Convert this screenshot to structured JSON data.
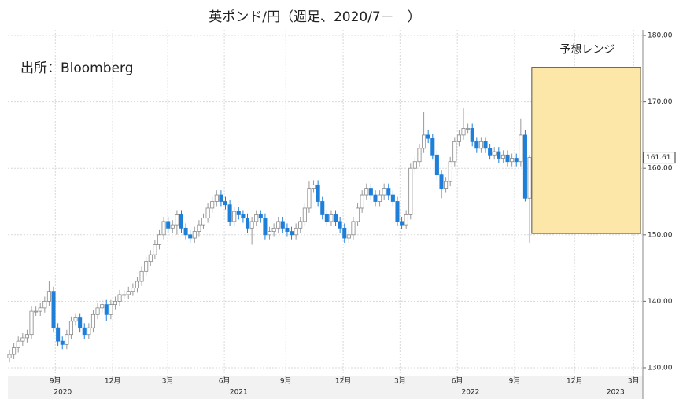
{
  "chart_data": {
    "type": "candlestick",
    "title": "英ポンド/円（週足、2020/7－　）",
    "source": "出所：Bloomberg",
    "up_color": "#ffffff",
    "down_color": "#1e7fd8",
    "open": [
      131.5,
      132,
      133,
      134,
      134.5,
      135,
      138.5,
      138.5,
      139,
      140,
      141.5,
      136,
      134,
      133.5,
      135,
      137,
      137.5,
      136,
      135,
      136,
      138,
      139,
      139.5,
      138,
      139.5,
      140,
      141,
      141,
      141.5,
      142,
      143,
      144.5,
      146,
      147,
      148.5,
      150,
      152,
      151,
      151.5,
      153,
      151,
      150,
      149.5,
      150.5,
      151.5,
      152.5,
      154,
      155,
      156,
      155,
      154.5,
      152,
      153.5,
      153,
      152.5,
      151,
      152,
      153,
      152.5,
      150,
      150.5,
      151,
      152,
      151,
      150.5,
      150,
      151,
      152,
      154,
      157,
      157.5,
      155,
      153,
      152,
      153,
      152,
      151,
      149.5,
      150,
      152,
      154,
      156,
      157,
      156,
      155,
      156,
      157,
      156,
      155,
      152,
      151.5,
      153,
      160,
      161,
      163,
      165,
      164.5,
      162,
      159,
      157,
      158,
      161,
      164,
      165,
      166,
      166,
      164,
      163,
      164,
      163,
      162,
      162.5,
      161.5,
      162,
      161,
      161.5,
      161,
      165,
      155.5
    ],
    "high": [
      132.7,
      133.7,
      134.7,
      135.2,
      135.7,
      139.2,
      139.2,
      139.7,
      140.7,
      143,
      142.2,
      136.7,
      134.7,
      135.7,
      137.7,
      138.2,
      138.2,
      136.7,
      136.7,
      138.7,
      139.7,
      140.2,
      140.2,
      140.2,
      140.7,
      141.7,
      141.7,
      142.2,
      142.7,
      143.7,
      145.2,
      146.7,
      147.7,
      149.2,
      150.7,
      152.7,
      152.7,
      152.2,
      153.7,
      153.7,
      151.7,
      150.7,
      151.2,
      152.2,
      153.2,
      154.7,
      155.7,
      156.7,
      156.7,
      155.7,
      155.2,
      154.2,
      154.2,
      153.7,
      153.2,
      152.7,
      153.7,
      153.7,
      153.2,
      151.2,
      151.7,
      152.7,
      152.7,
      151.7,
      151.2,
      151.7,
      152.7,
      154.7,
      158,
      158.2,
      158.2,
      155.7,
      153.7,
      153.7,
      153.7,
      152.7,
      151.7,
      150.7,
      152.7,
      154.7,
      156.7,
      157.7,
      157.7,
      156.7,
      156.7,
      157.7,
      157.7,
      156.7,
      155.7,
      152.7,
      153.7,
      160.7,
      161.7,
      163.7,
      168.5,
      165.7,
      165.2,
      162.7,
      159.7,
      158.7,
      161.7,
      164.7,
      165.7,
      169,
      166.7,
      166.7,
      164.7,
      164.7,
      164.7,
      163.7,
      163.2,
      163.2,
      162.7,
      162.7,
      162.2,
      162.2,
      167.5,
      165.7,
      162
    ],
    "low": [
      130.8,
      131.3,
      132.3,
      133.3,
      133.8,
      134.3,
      137.8,
      137.8,
      138.3,
      139.3,
      135.3,
      133.3,
      132.8,
      132.8,
      134.3,
      136.3,
      135.3,
      134.3,
      134.3,
      135.3,
      137.3,
      138.3,
      137,
      137.3,
      138.8,
      139.3,
      140.3,
      140.3,
      140.8,
      141.3,
      142.3,
      143.8,
      145.3,
      146.3,
      147.8,
      149.3,
      150.3,
      150.3,
      150,
      150.3,
      149.3,
      148.8,
      148.8,
      149.8,
      150.8,
      151.8,
      153.3,
      154.3,
      154.3,
      153.8,
      151.3,
      151.3,
      152.3,
      151.8,
      150.3,
      148.5,
      151.3,
      151.8,
      149.3,
      149.3,
      149.8,
      150.3,
      150.3,
      149.8,
      149.3,
      149.3,
      150.3,
      151.3,
      153.3,
      156.3,
      154.3,
      152.3,
      151.3,
      151.3,
      151.3,
      150.3,
      148.8,
      148.8,
      149.3,
      151.3,
      153.3,
      155.3,
      155.3,
      154.3,
      154.3,
      155.3,
      155.3,
      154.3,
      151.3,
      150.8,
      150.8,
      152.3,
      159.3,
      160.3,
      162.3,
      163.8,
      161.3,
      158.3,
      155.5,
      156.3,
      157.3,
      160.3,
      163.3,
      164.3,
      165.3,
      163.3,
      162.3,
      162.3,
      162.3,
      161.3,
      161.3,
      160.8,
      160.8,
      160.3,
      160.3,
      160.3,
      160.3,
      155,
      148.8
    ],
    "close": [
      132,
      133,
      134,
      134.5,
      135,
      138.5,
      138.5,
      139,
      140,
      141.5,
      136,
      134,
      133.5,
      135,
      137,
      137.5,
      136,
      135,
      136,
      138,
      139,
      139.5,
      138,
      139.5,
      140,
      141,
      141,
      141.5,
      142,
      143,
      144.5,
      146,
      147,
      148.5,
      150,
      152,
      151,
      151.5,
      153,
      151,
      150,
      149.5,
      150.5,
      151.5,
      152.5,
      154,
      155,
      156,
      155,
      154.5,
      152,
      153.5,
      153,
      152.5,
      151,
      152,
      153,
      152.5,
      150,
      150.5,
      151,
      152,
      151,
      150.5,
      150,
      151,
      152,
      154,
      157,
      157.5,
      155,
      153,
      152,
      153,
      152,
      151,
      149.5,
      150,
      152,
      154,
      156,
      157,
      156,
      155,
      156,
      157,
      156,
      155,
      152,
      151.5,
      153,
      160,
      161,
      163,
      165,
      164.5,
      162,
      159,
      157,
      158,
      161,
      164,
      165,
      166,
      166,
      164,
      163,
      164,
      163,
      162,
      162.5,
      161.5,
      162,
      161,
      161.5,
      161,
      165,
      155.5,
      161.61
    ],
    "forecast_range": {
      "label": "予想レンジ",
      "low": 150.2,
      "high": 175.2,
      "color": "#fde7a8"
    },
    "xlim": [
      -0.36,
      143.7
    ],
    "xticks": [
      {
        "value": 10.4,
        "label": "9月"
      },
      {
        "value": 23.4,
        "label": "12月"
      },
      {
        "value": 35.9,
        "label": "3月"
      },
      {
        "value": 48.75,
        "label": "6月"
      },
      {
        "value": 62.7,
        "label": "9月"
      },
      {
        "value": 75.7,
        "label": "12月"
      },
      {
        "value": 88.6,
        "label": "3月"
      },
      {
        "value": 101.6,
        "label": "6月"
      },
      {
        "value": 114.6,
        "label": "9月"
      },
      {
        "value": 128.2,
        "label": "12月"
      },
      {
        "value": 141.6,
        "label": "3月"
      }
    ],
    "year_ticks": [
      {
        "value": 12.1,
        "label": "2020"
      },
      {
        "value": 52,
        "label": "2021"
      },
      {
        "value": 104.6,
        "label": "2022"
      },
      {
        "value": 137.5,
        "label": "2023"
      }
    ],
    "ylim": [
      129.17,
      180.83
    ],
    "yticks": [
      {
        "value": 130,
        "label": "130.00"
      },
      {
        "value": 140,
        "label": "140.00"
      },
      {
        "value": 150,
        "label": "150.00"
      },
      {
        "value": 160,
        "label": "160.00"
      },
      {
        "value": 170,
        "label": "170.00"
      },
      {
        "value": 180,
        "label": "180.00"
      }
    ],
    "grid": true
  }
}
